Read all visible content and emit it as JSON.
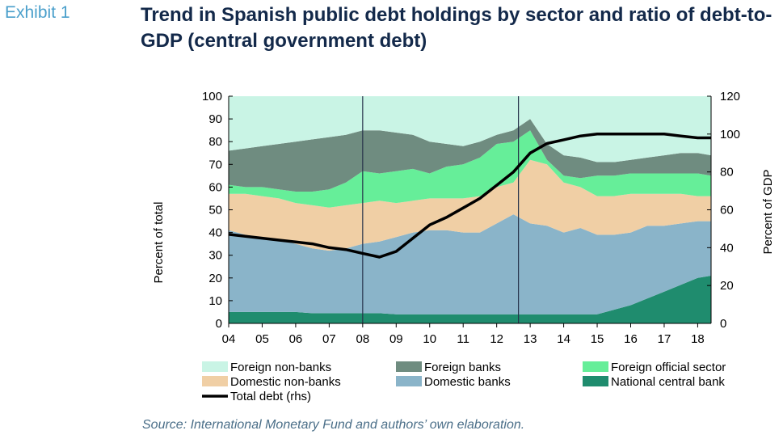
{
  "header": {
    "exhibit": "Exhibit 1",
    "title": "Trend in Spanish public debt holdings by sector and ratio of debt-to-GDP (central government debt)"
  },
  "source": "Source: International Monetary Fund and authors’ own elaboration.",
  "chart_data": {
    "type": "area",
    "ylabel": "Percent of total",
    "y2label": "Percent of GDP",
    "x_ticks": [
      "04",
      "05",
      "06",
      "07",
      "08",
      "09",
      "10",
      "11",
      "12",
      "13",
      "14",
      "15",
      "16",
      "17",
      "18"
    ],
    "x_tick_values": [
      2004,
      2005,
      2006,
      2007,
      2008,
      2009,
      2010,
      2011,
      2012,
      2013,
      2014,
      2015,
      2016,
      2017,
      2018
    ],
    "xlim": [
      2004,
      2018.4
    ],
    "ylim": [
      0,
      100
    ],
    "y_ticks": [
      0,
      10,
      20,
      30,
      40,
      50,
      60,
      70,
      80,
      90,
      100
    ],
    "y2lim": [
      0,
      120
    ],
    "y2_ticks": [
      0,
      20,
      40,
      60,
      80,
      100,
      120
    ],
    "vertical_lines_x": [
      2008,
      2012.65
    ],
    "x": [
      2004,
      2004.5,
      2005,
      2005.5,
      2006,
      2006.5,
      2007,
      2007.5,
      2008,
      2008.5,
      2009,
      2009.5,
      2010,
      2010.5,
      2011,
      2011.5,
      2012,
      2012.5,
      2013,
      2013.5,
      2014,
      2014.5,
      2015,
      2015.5,
      2016,
      2016.5,
      2017,
      2017.5,
      2018,
      2018.4
    ],
    "series": [
      {
        "name": "National central bank",
        "color": "#1f8c6e",
        "stack_top": [
          5,
          5,
          5,
          5,
          5,
          4.5,
          4.5,
          4.5,
          4.5,
          4.5,
          4,
          4,
          4,
          4,
          4,
          4,
          4,
          4,
          4,
          4,
          4,
          4,
          4,
          6,
          8,
          11,
          14,
          17,
          20,
          21
        ]
      },
      {
        "name": "Domestic banks",
        "color": "#8ab4c9",
        "stack_top": [
          41,
          39,
          38,
          37,
          35,
          33,
          32,
          33,
          35,
          36,
          38,
          40,
          41,
          41,
          40,
          40,
          44,
          48,
          44,
          43,
          40,
          42,
          39,
          39,
          40,
          43,
          43,
          44,
          45,
          45
        ]
      },
      {
        "name": "Domestic non-banks",
        "color": "#f0cfa5",
        "stack_top": [
          57,
          57,
          56,
          55,
          53,
          52,
          51,
          52,
          53,
          54,
          53,
          54,
          55,
          55,
          55,
          56,
          60,
          62,
          72,
          70,
          62,
          60,
          56,
          56,
          57,
          57,
          57,
          57,
          56,
          56
        ]
      },
      {
        "name": "Foreign official sector",
        "color": "#66ee99",
        "stack_top": [
          61,
          60,
          60,
          59,
          58,
          58,
          59,
          62,
          67,
          66,
          67,
          68,
          66,
          69,
          70,
          73,
          79,
          80,
          85,
          72,
          65,
          64,
          65,
          65,
          66,
          66,
          66,
          66,
          66,
          65
        ]
      },
      {
        "name": "Foreign banks",
        "color": "#6f8c80",
        "stack_top": [
          76,
          77,
          78,
          79,
          80,
          81,
          82,
          83,
          85,
          85,
          84,
          83,
          80,
          79,
          78,
          80,
          83,
          85,
          90,
          79,
          74,
          73,
          71,
          71,
          72,
          73,
          74,
          75,
          75,
          74
        ]
      },
      {
        "name": "Foreign non-banks",
        "color": "#c9f4e5",
        "stack_top": [
          100,
          100,
          100,
          100,
          100,
          100,
          100,
          100,
          100,
          100,
          100,
          100,
          100,
          100,
          100,
          100,
          100,
          100,
          100,
          100,
          100,
          100,
          100,
          100,
          100,
          100,
          100,
          100,
          100,
          100
        ]
      }
    ],
    "line_series": {
      "name": "Total debt (rhs)",
      "axis": "right",
      "color": "#000000",
      "values": [
        47,
        46,
        45,
        44,
        43,
        42,
        40,
        39,
        37,
        35,
        38,
        45,
        52,
        56,
        61,
        66,
        73,
        80,
        90,
        95,
        97,
        99,
        100,
        100,
        100,
        100,
        100,
        99,
        98,
        98
      ]
    },
    "legend": {
      "placement": "bottom",
      "items": [
        {
          "label": "Foreign non-banks",
          "color": "#c9f4e5",
          "kind": "box"
        },
        {
          "label": "Foreign banks",
          "color": "#6f8c80",
          "kind": "box"
        },
        {
          "label": "Foreign official sector",
          "color": "#66ee99",
          "kind": "box"
        },
        {
          "label": "Domestic non-banks",
          "color": "#f0cfa5",
          "kind": "box"
        },
        {
          "label": "Domestic banks",
          "color": "#8ab4c9",
          "kind": "box"
        },
        {
          "label": "National central bank",
          "color": "#1f8c6e",
          "kind": "box"
        },
        {
          "label": "Total debt (rhs)",
          "color": "#000000",
          "kind": "line"
        }
      ]
    }
  }
}
